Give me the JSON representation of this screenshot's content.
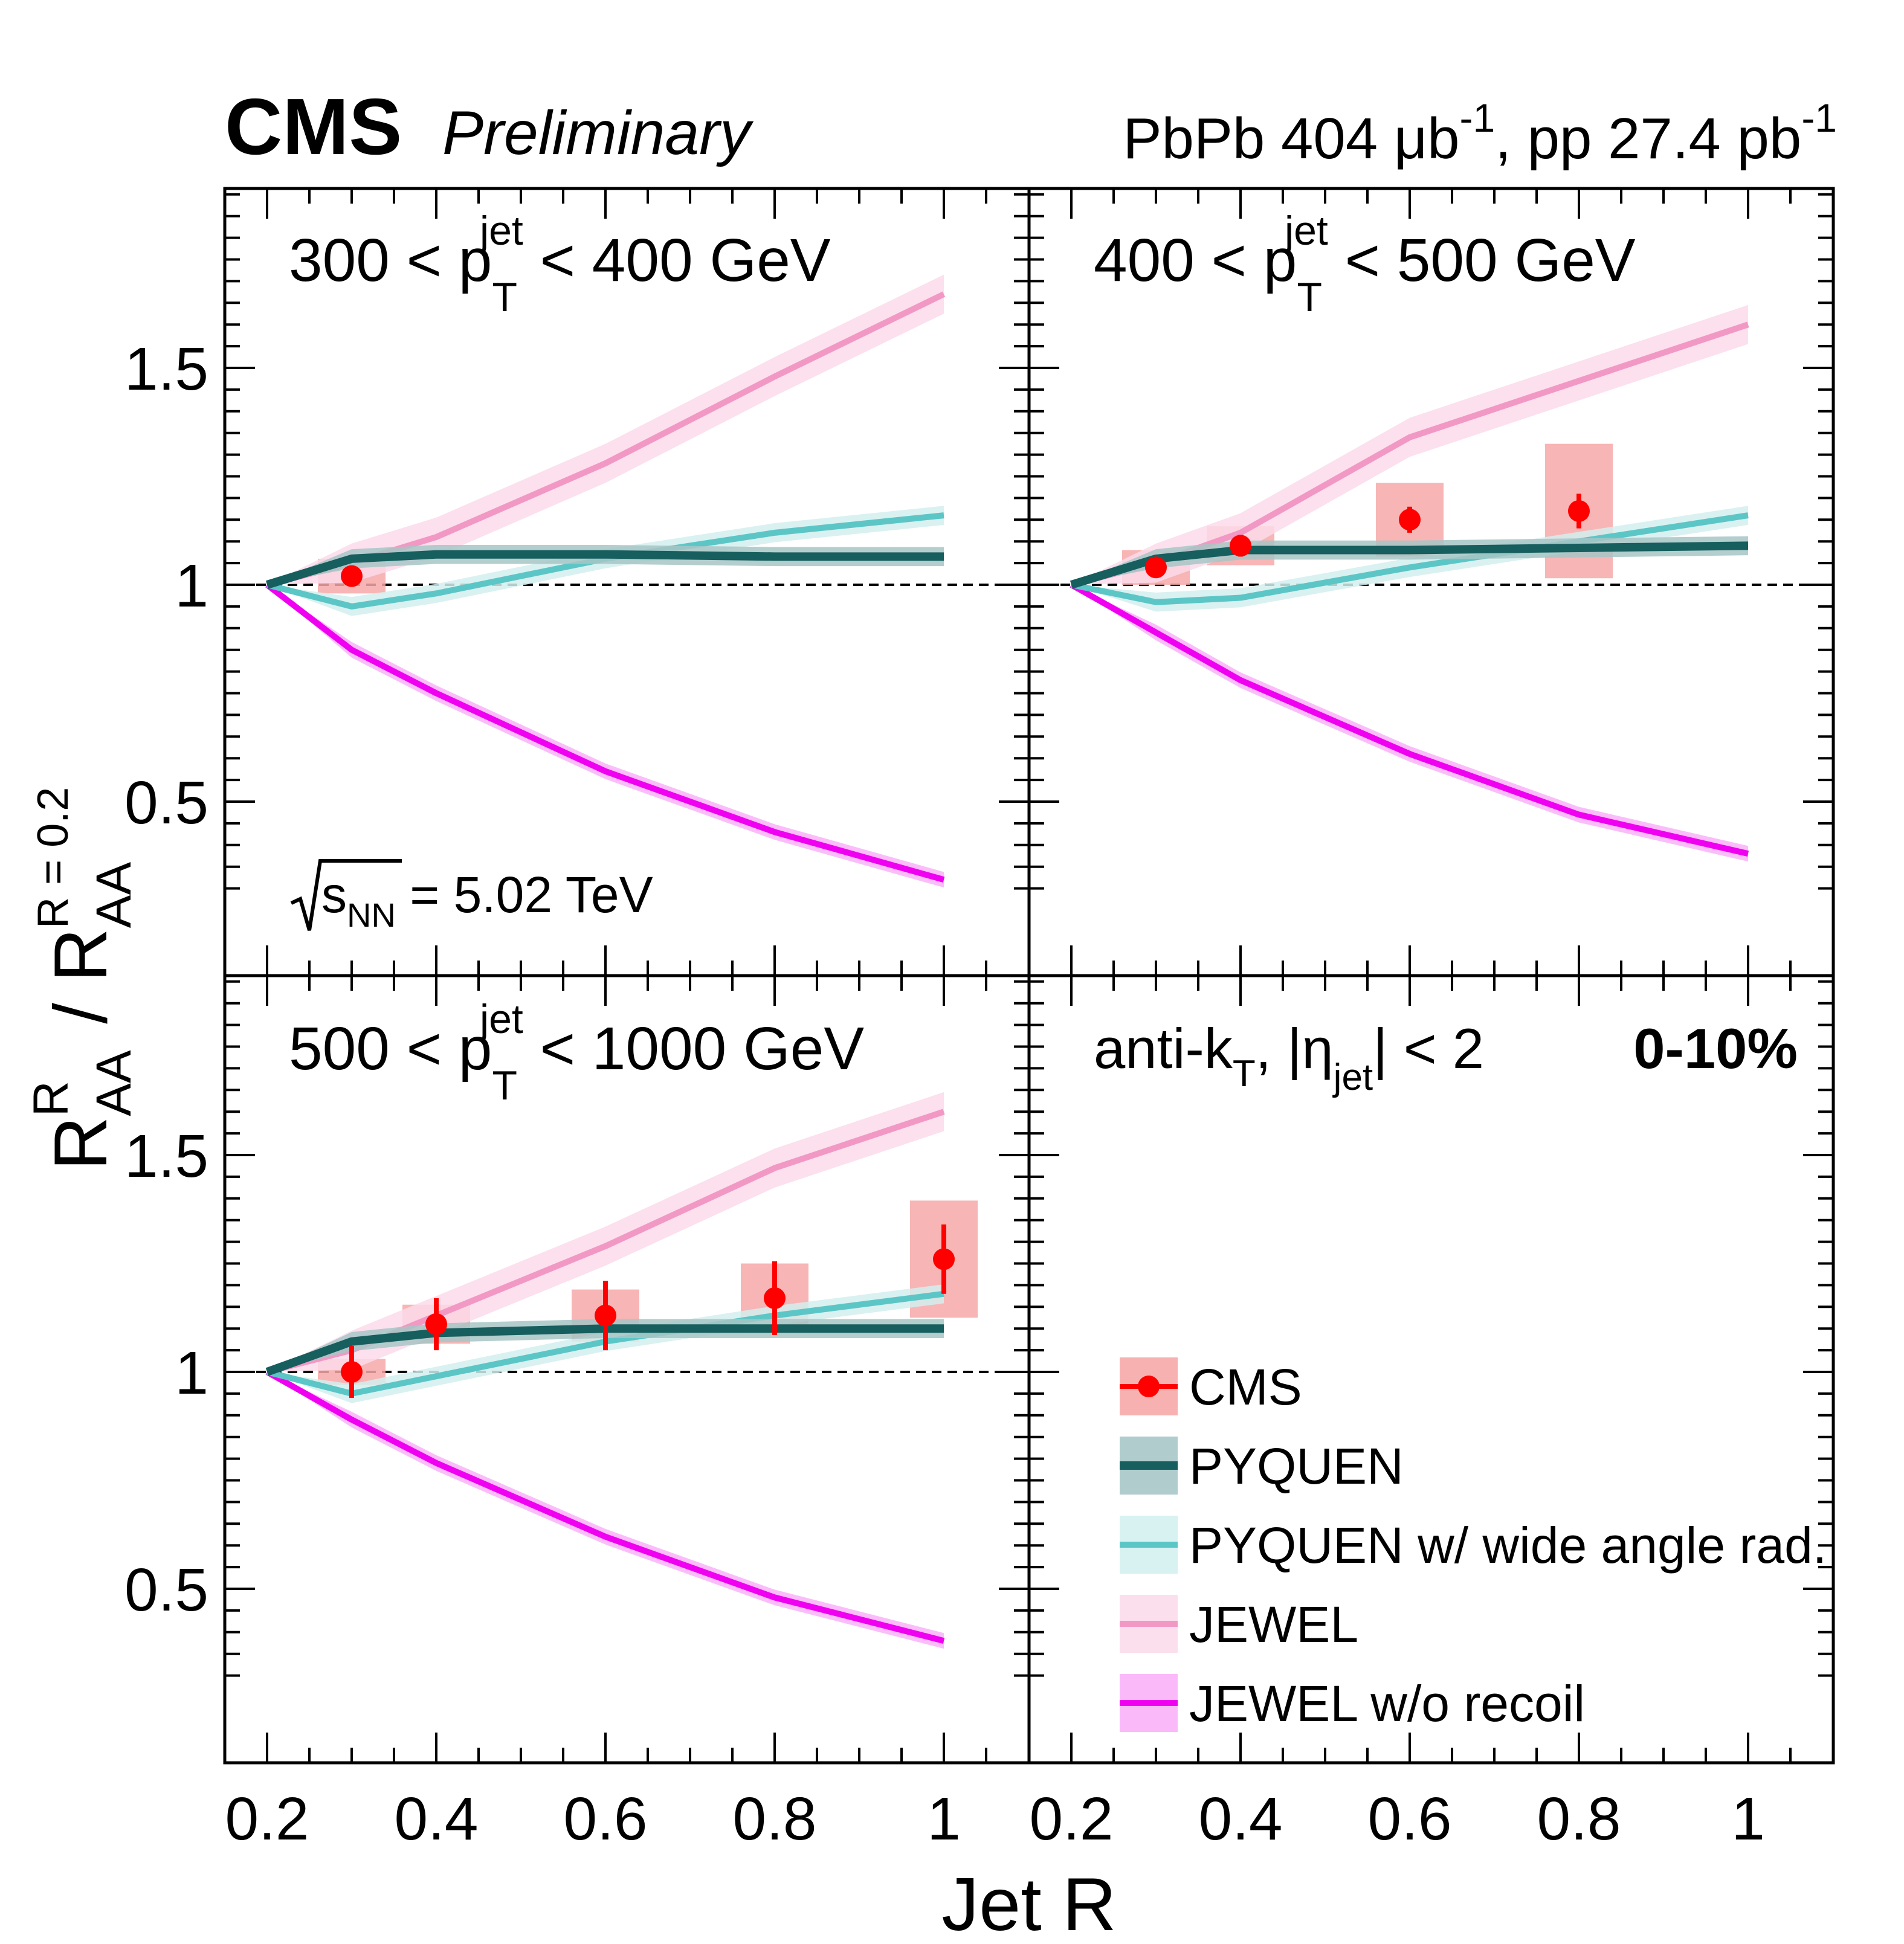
{
  "header": {
    "experiment": "CMS",
    "status": "Preliminary",
    "lumi_pbpb": "PbPb 404 μb",
    "lumi_pbpb_exp": "-1",
    "lumi_pp": ", pp 27.4 pb",
    "lumi_pp_exp": "-1"
  },
  "panel_labels": {
    "p1_lo": "300 < p",
    "p1_hi": " < 400 GeV",
    "p2_lo": "400 < p",
    "p2_hi": " < 500 GeV",
    "p3_lo": "500 < p",
    "p3_hi": " < 1000 GeV",
    "pt_sup": "jet",
    "pt_sub": "T",
    "energy_s": "s",
    "energy_sub": "NN",
    "energy_val": " = 5.02 TeV",
    "algo": "anti-k",
    "algo_sub": "T",
    "algo_eta": ", |η",
    "algo_eta_sub": "jet",
    "algo_tail": "| < 2",
    "centrality": "0-10%"
  },
  "axes": {
    "xlabel": "Jet R",
    "ylabel_num": "R",
    "ylabel_num_sup": "R",
    "ylabel_num_sub": "AA",
    "ylabel_slash": " / ",
    "ylabel_den": "R",
    "ylabel_den_sup": "R = 0.2",
    "ylabel_den_sub": "AA",
    "xticks": [
      "0.2",
      "0.4",
      "0.6",
      "0.8",
      "1"
    ],
    "yticks": [
      "0.5",
      "1",
      "1.5"
    ]
  },
  "colors": {
    "cms": "#ff0000",
    "cms_box": "#f7a8a8",
    "pyquen": "#175e5e",
    "pyquen_band": "#a7c6c6",
    "pyquen_wide": "#5cc6c6",
    "pyquen_wide_band": "#d4efef",
    "jewel": "#f298c4",
    "jewel_band": "#fbdbea",
    "jewel_norecoil": "#f000f0",
    "jewel_norecoil_band": "#f9b2f9"
  },
  "chart_data": [
    {
      "type": "line",
      "panel": "300 < pT jet < 400 GeV",
      "xlabel": "Jet R",
      "xlim": [
        0.15,
        1.1
      ],
      "ylim": [
        0.3,
        2.0
      ],
      "series": [
        {
          "name": "CMS",
          "x": [
            0.3
          ],
          "y": [
            1.02
          ],
          "stat_err": [
            0.01
          ],
          "sys_err": [
            0.04
          ]
        },
        {
          "name": "PYQUEN",
          "x": [
            0.2,
            0.3,
            0.4,
            0.6,
            0.8,
            1.0
          ],
          "y": [
            1.0,
            1.06,
            1.07,
            1.07,
            1.065,
            1.065
          ]
        },
        {
          "name": "PYQUEN w/ wide angle rad.",
          "x": [
            0.2,
            0.3,
            0.4,
            0.6,
            0.8,
            1.0
          ],
          "y": [
            1.0,
            0.95,
            0.98,
            1.06,
            1.12,
            1.16
          ]
        },
        {
          "name": "JEWEL",
          "x": [
            0.2,
            0.3,
            0.4,
            0.6,
            0.8,
            1.0
          ],
          "y": [
            1.0,
            1.05,
            1.11,
            1.28,
            1.48,
            1.67
          ]
        },
        {
          "name": "JEWEL w/o recoil",
          "x": [
            0.2,
            0.3,
            0.4,
            0.6,
            0.8,
            1.0
          ],
          "y": [
            1.0,
            0.85,
            0.75,
            0.57,
            0.43,
            0.32
          ]
        }
      ]
    },
    {
      "type": "line",
      "panel": "400 < pT jet < 500 GeV",
      "xlabel": "Jet R",
      "xlim": [
        0.15,
        1.1
      ],
      "ylim": [
        0.3,
        2.0
      ],
      "series": [
        {
          "name": "CMS",
          "x": [
            0.3,
            0.4,
            0.6,
            0.8
          ],
          "y": [
            1.04,
            1.09,
            1.15,
            1.17
          ],
          "stat_err": [
            0.02,
            0.025,
            0.03,
            0.04
          ],
          "sys_err": [
            0.04,
            0.045,
            0.085,
            0.155
          ]
        },
        {
          "name": "PYQUEN",
          "x": [
            0.2,
            0.3,
            0.4,
            0.6,
            0.8,
            1.0
          ],
          "y": [
            1.0,
            1.06,
            1.08,
            1.08,
            1.085,
            1.09
          ]
        },
        {
          "name": "PYQUEN w/ wide angle rad.",
          "x": [
            0.2,
            0.3,
            0.4,
            0.6,
            0.8,
            1.0
          ],
          "y": [
            1.0,
            0.96,
            0.97,
            1.04,
            1.1,
            1.16
          ]
        },
        {
          "name": "JEWEL",
          "x": [
            0.2,
            0.3,
            0.4,
            0.6,
            0.8,
            1.0
          ],
          "y": [
            1.0,
            1.05,
            1.12,
            1.34,
            1.47,
            1.6
          ]
        },
        {
          "name": "JEWEL w/o recoil",
          "x": [
            0.2,
            0.3,
            0.4,
            0.6,
            0.8,
            1.0
          ],
          "y": [
            1.0,
            0.89,
            0.78,
            0.61,
            0.47,
            0.38
          ]
        }
      ]
    },
    {
      "type": "line",
      "panel": "500 < pT jet < 1000 GeV",
      "xlabel": "Jet R",
      "xlim": [
        0.15,
        1.1
      ],
      "ylim": [
        0.3,
        2.0
      ],
      "series": [
        {
          "name": "CMS",
          "x": [
            0.3,
            0.4,
            0.6,
            0.8,
            1.0
          ],
          "y": [
            1.0,
            1.11,
            1.13,
            1.17,
            1.26
          ],
          "stat_err": [
            0.06,
            0.06,
            0.08,
            0.085,
            0.08
          ],
          "sys_err": [
            0.03,
            0.045,
            0.06,
            0.08,
            0.135
          ]
        },
        {
          "name": "PYQUEN",
          "x": [
            0.2,
            0.3,
            0.4,
            0.6,
            0.8,
            1.0
          ],
          "y": [
            1.0,
            1.07,
            1.09,
            1.1,
            1.1,
            1.1
          ]
        },
        {
          "name": "PYQUEN w/ wide angle rad.",
          "x": [
            0.2,
            0.3,
            0.4,
            0.6,
            0.8,
            1.0
          ],
          "y": [
            1.0,
            0.95,
            0.99,
            1.07,
            1.13,
            1.18
          ]
        },
        {
          "name": "JEWEL",
          "x": [
            0.2,
            0.3,
            0.4,
            0.6,
            0.8,
            1.0
          ],
          "y": [
            1.0,
            1.05,
            1.13,
            1.29,
            1.47,
            1.6
          ]
        },
        {
          "name": "JEWEL w/o recoil",
          "x": [
            0.2,
            0.3,
            0.4,
            0.6,
            0.8,
            1.0
          ],
          "y": [
            1.0,
            0.89,
            0.79,
            0.62,
            0.48,
            0.38
          ]
        }
      ]
    }
  ],
  "legend": {
    "placement": "bottom-right panel",
    "entries": [
      "CMS",
      "PYQUEN",
      "PYQUEN w/ wide angle rad.",
      "JEWEL",
      "JEWEL w/o recoil"
    ]
  }
}
